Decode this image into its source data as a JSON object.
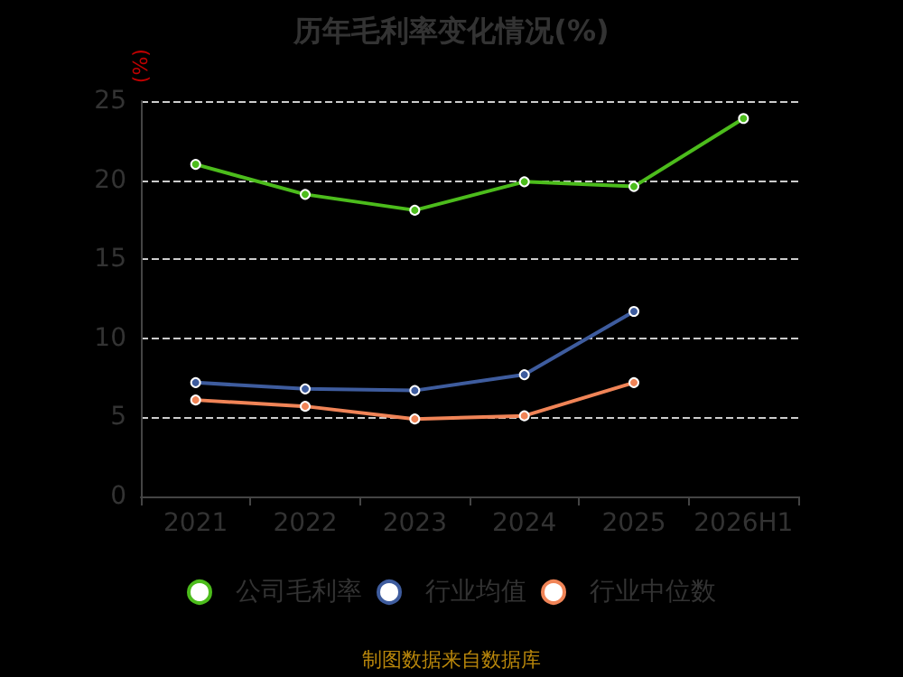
{
  "chart_data": {
    "type": "line",
    "title": "历年毛利率变化情况(%)",
    "ylabel": "(%)",
    "categories": [
      "2021",
      "2022",
      "2023",
      "2024",
      "2025",
      "2026H1"
    ],
    "series": [
      {
        "name": "公司毛利率",
        "color": "#4cbc1c",
        "values": [
          21.0,
          19.1,
          18.1,
          19.9,
          19.6,
          23.9
        ]
      },
      {
        "name": "行业均值",
        "color": "#3e5c9e",
        "values": [
          7.2,
          6.8,
          6.7,
          7.7,
          11.7,
          null
        ]
      },
      {
        "name": "行业中位数",
        "color": "#f08457",
        "values": [
          6.1,
          5.7,
          4.9,
          5.1,
          7.2,
          null
        ]
      }
    ],
    "ylim": [
      0,
      25
    ],
    "yticks": [
      0,
      5,
      10,
      15,
      20,
      25
    ],
    "grid": "y",
    "legend": "bottom",
    "marker": "circle",
    "line_style": "solid",
    "annotations": [
      "制图数据来自数据库"
    ]
  }
}
